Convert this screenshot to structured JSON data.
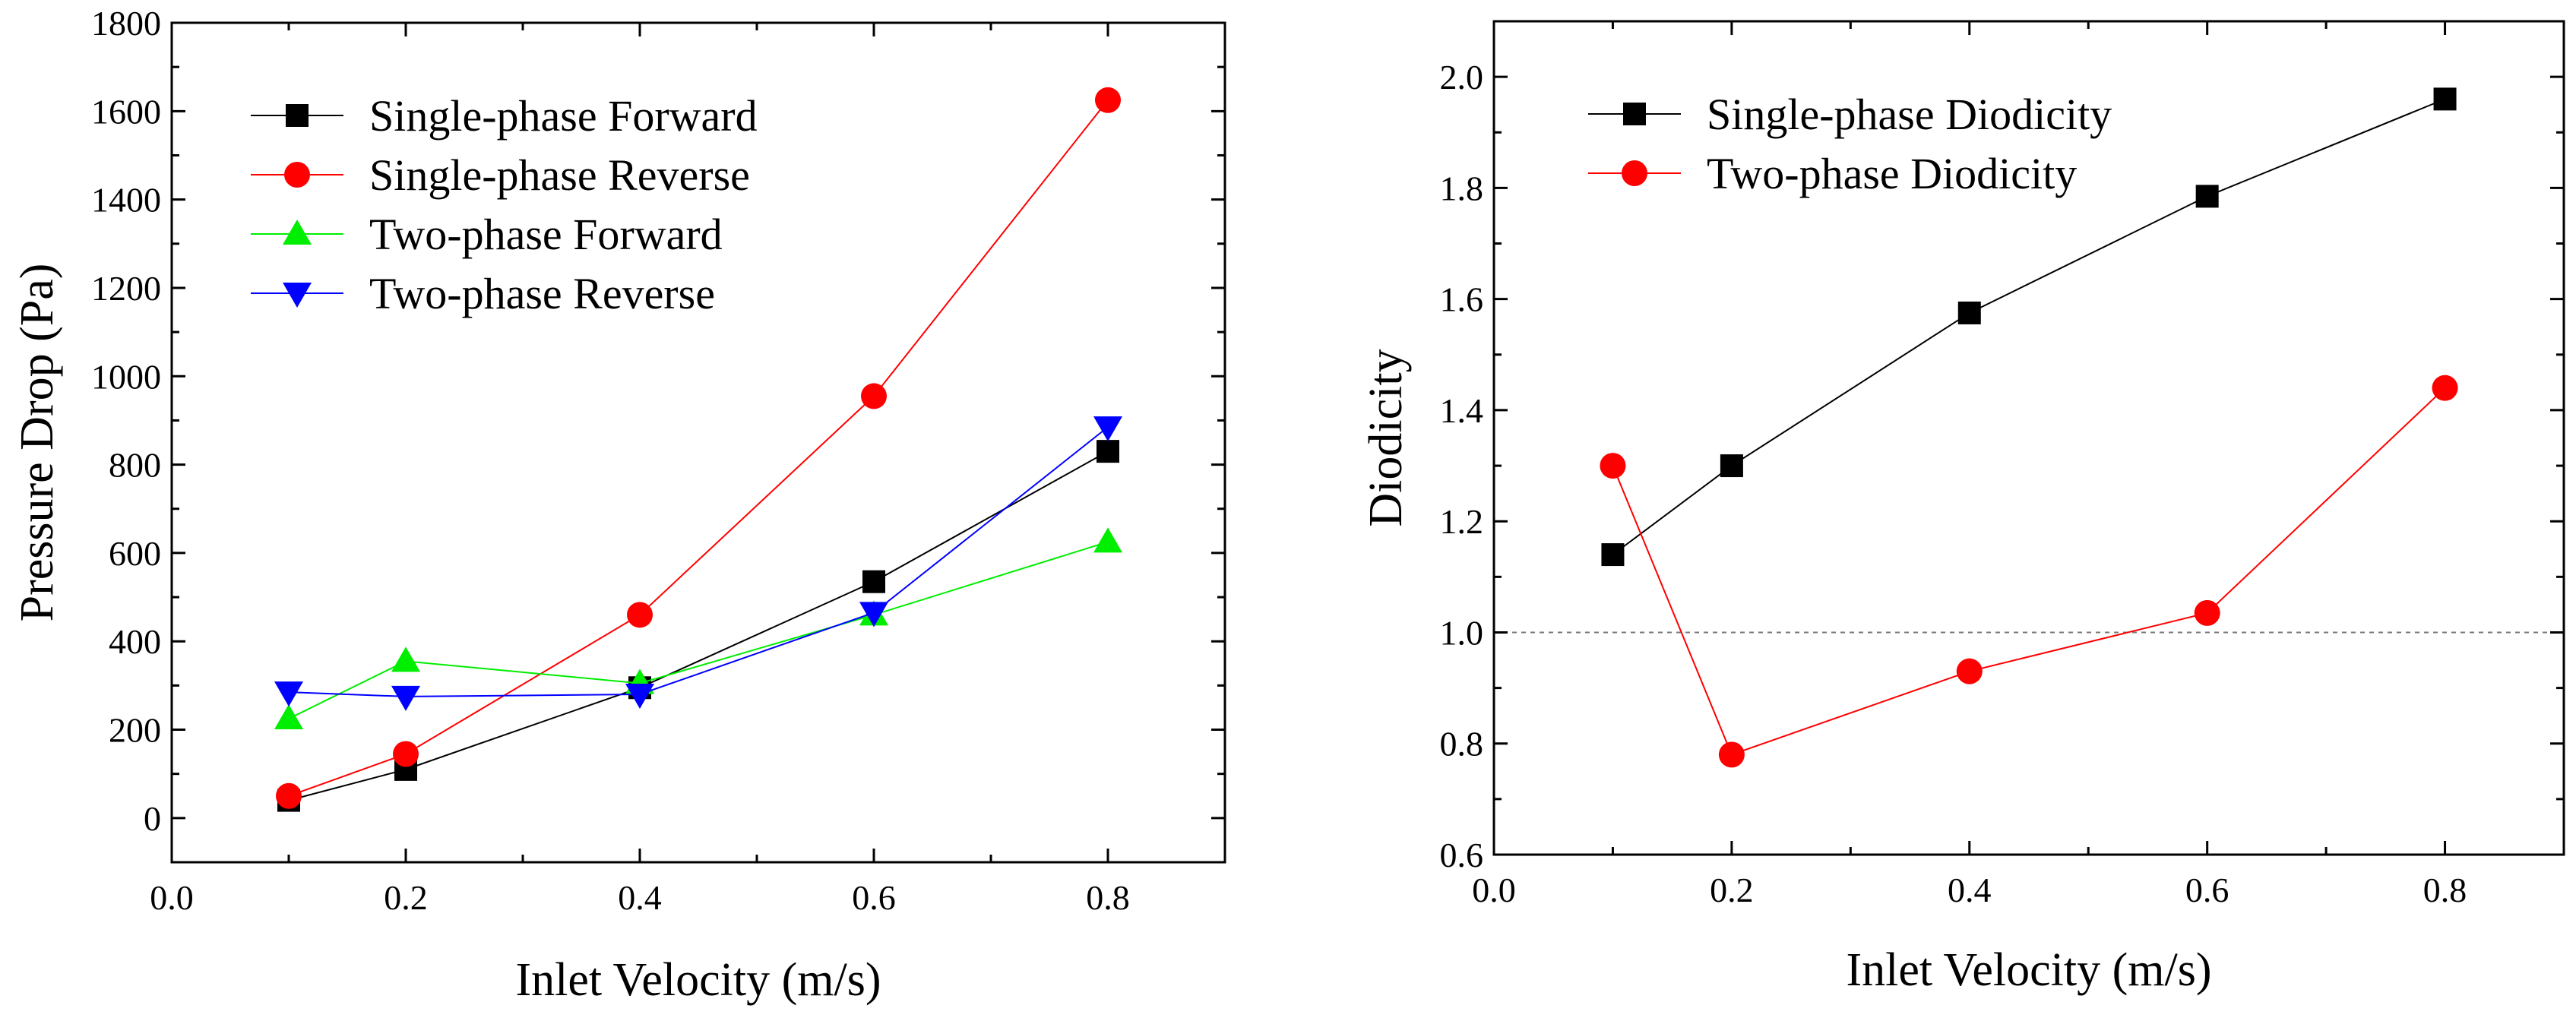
{
  "chart_data": [
    {
      "type": "line",
      "title": "",
      "xlabel": "Inlet Velocity (m/s)",
      "ylabel": "Pressure Drop (Pa)",
      "xlim": [
        0.0,
        0.9
      ],
      "ylim": [
        -100,
        1800
      ],
      "xticks": [
        0.0,
        0.2,
        0.4,
        0.6,
        0.8
      ],
      "xtick_labels": [
        "0.0",
        "0.2",
        "0.4",
        "0.6",
        "0.8"
      ],
      "yticks": [
        0,
        200,
        400,
        600,
        800,
        1000,
        1200,
        1400,
        1600,
        1800
      ],
      "ytick_labels": [
        "0",
        "200",
        "400",
        "600",
        "800",
        "1000",
        "1200",
        "1400",
        "1600",
        "1800"
      ],
      "grid": false,
      "legend_position": "top-left",
      "x": [
        0.1,
        0.2,
        0.4,
        0.6,
        0.8
      ],
      "series": [
        {
          "name": "Single-phase Forward",
          "marker": "square",
          "color": "#000000",
          "values": [
            40,
            110,
            295,
            535,
            830
          ]
        },
        {
          "name": "Single-phase Reverse",
          "marker": "circle",
          "color": "#ff0000",
          "values": [
            50,
            145,
            460,
            955,
            1625
          ]
        },
        {
          "name": "Two-phase Forward",
          "marker": "triangle-up",
          "color": "#00ee00",
          "values": [
            225,
            355,
            305,
            460,
            625
          ]
        },
        {
          "name": "Two-phase Reverse",
          "marker": "triangle-down",
          "color": "#0000ff",
          "values": [
            285,
            275,
            280,
            465,
            885
          ]
        }
      ]
    },
    {
      "type": "line",
      "title": "",
      "xlabel": "Inlet Velocity (m/s)",
      "ylabel": "Diodicity",
      "xlim": [
        0.0,
        0.9
      ],
      "ylim": [
        0.6,
        2.1
      ],
      "xticks": [
        0.0,
        0.2,
        0.4,
        0.6,
        0.8
      ],
      "xtick_labels": [
        "0.0",
        "0.2",
        "0.4",
        "0.6",
        "0.8"
      ],
      "yticks": [
        0.6,
        0.8,
        1.0,
        1.2,
        1.4,
        1.6,
        1.8,
        2.0
      ],
      "ytick_labels": [
        "0.6",
        "0.8",
        "1.0",
        "1.2",
        "1.4",
        "1.6",
        "1.8",
        "2.0"
      ],
      "grid": false,
      "legend_position": "top-left",
      "reference_line": {
        "y": 1.0,
        "style": "dashed",
        "color": "#777777"
      },
      "x": [
        0.1,
        0.2,
        0.4,
        0.6,
        0.8
      ],
      "series": [
        {
          "name": "Single-phase Diodicity",
          "marker": "square",
          "color": "#000000",
          "values": [
            1.14,
            1.3,
            1.575,
            1.785,
            1.96
          ]
        },
        {
          "name": "Two-phase Diodicity",
          "marker": "circle",
          "color": "#ff0000",
          "values": [
            1.3,
            0.78,
            0.93,
            1.035,
            1.44
          ]
        }
      ]
    }
  ]
}
